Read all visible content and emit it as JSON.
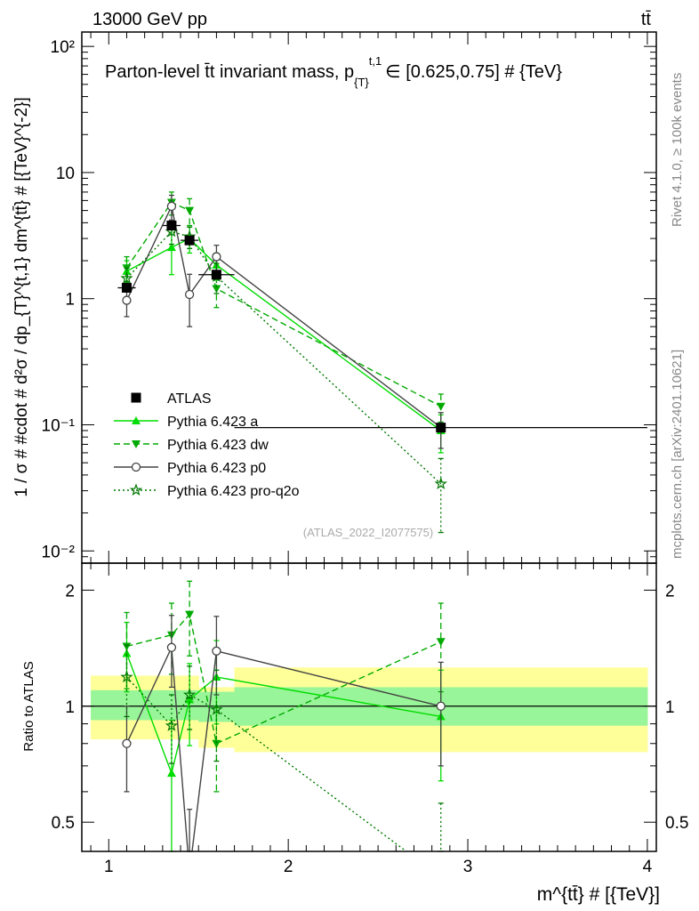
{
  "header": {
    "left_label": "13000 GeV pp",
    "right_label": "tt̄"
  },
  "side_labels": {
    "rivet": "Rivet 4.1.0, ≥ 100k events",
    "mcplots": "mcplots.cern.ch [arXiv:2401.10621]"
  },
  "chart_data": [
    {
      "type": "line",
      "panel": "main",
      "title": "Parton-level t̄t invariant mass, p_{T}^{t,1} ∈ [0.625,0.75] # {TeV}",
      "title_main": "Parton-level t̄t invariant mass, p",
      "title_sub": "{T}",
      "title_sup": "t,1",
      "title_tail": "∈ [0.625,0.75] # {TeV}",
      "ylabel": "1 / σ # #cdot # d²σ / dp_{T}^{t,1} dm^{tt̄} # [{TeV}^{-2}]",
      "ylabel_plain": "1 / σ # #cdot # d²σ / dp_{T}^{t,1} dm^{tt̄} # [{TeV}^{-2}]",
      "yscale": "log",
      "ylim": [
        0.008,
        130
      ],
      "xlim": [
        0.85,
        4.05
      ],
      "ytick_labels": [
        "10⁻²",
        "10⁻¹",
        "1",
        "10",
        "10²"
      ],
      "ytick_values": [
        0.01,
        0.1,
        1,
        10,
        100
      ],
      "watermark": "(ATLAS_2022_I2077575)",
      "legend_position": "middle-left",
      "series": [
        {
          "name": "ATLAS",
          "style": "data",
          "color": "#000000",
          "x": [
            1.1,
            1.35,
            1.45,
            1.6,
            2.85
          ],
          "y": [
            1.22,
            3.8,
            2.9,
            1.55,
            0.095
          ],
          "xerr_low": [
            0.05,
            0.05,
            0.05,
            0.1,
            1.15
          ],
          "xerr_high": [
            0.05,
            0.05,
            0.05,
            0.1,
            1.15
          ]
        },
        {
          "name": "Pythia 6.423 a",
          "style": "solid",
          "marker": "triangle-up",
          "color": "#00dd00",
          "x": [
            1.1,
            1.35,
            1.45,
            1.6,
            2.85
          ],
          "y": [
            1.65,
            2.55,
            3.0,
            1.85,
            0.09
          ],
          "err_low": [
            0.35,
            1.0,
            0.7,
            0.45,
            0.03
          ],
          "err_high": [
            0.35,
            1.0,
            0.7,
            0.45,
            0.03
          ]
        },
        {
          "name": "Pythia 6.423 dw",
          "style": "dashed",
          "marker": "triangle-down",
          "color": "#00aa00",
          "x": [
            1.1,
            1.35,
            1.45,
            1.6,
            2.85
          ],
          "y": [
            1.75,
            5.8,
            5.0,
            1.2,
            0.14
          ],
          "err_low": [
            0.4,
            1.2,
            1.2,
            0.35,
            0.035
          ],
          "err_high": [
            0.4,
            1.2,
            1.2,
            0.35,
            0.035
          ]
        },
        {
          "name": "Pythia 6.423 p0",
          "style": "solid",
          "marker": "circle-open",
          "color": "#444444",
          "x": [
            1.1,
            1.35,
            1.45,
            1.6,
            2.85
          ],
          "y": [
            0.97,
            5.4,
            1.08,
            2.15,
            0.095
          ],
          "err_low": [
            0.25,
            1.2,
            0.48,
            0.5,
            0.03
          ],
          "err_high": [
            0.25,
            1.2,
            0.48,
            0.5,
            0.03
          ]
        },
        {
          "name": "Pythia 6.423 pro-q2o",
          "style": "dotted",
          "marker": "star-open",
          "color": "#007700",
          "x": [
            1.1,
            1.35,
            1.45,
            1.6,
            2.85
          ],
          "y": [
            1.45,
            3.4,
            3.1,
            1.5,
            0.034
          ],
          "err_low": [
            0.3,
            0.7,
            0.6,
            0.4,
            0.02
          ],
          "err_high": [
            0.3,
            0.7,
            0.6,
            0.4,
            0.02
          ]
        }
      ]
    },
    {
      "type": "line",
      "panel": "ratio",
      "ylabel": "Ratio to ATLAS",
      "xlabel": "m^{tt̄} # [{TeV}]",
      "yscale": "log",
      "ylim": [
        0.42,
        2.35
      ],
      "xlim": [
        0.85,
        4.05
      ],
      "xtick_labels": [
        "1",
        "2",
        "3",
        "4"
      ],
      "xtick_values": [
        1,
        2,
        3,
        4
      ],
      "ytick_labels": [
        "0.5",
        "1",
        "2"
      ],
      "ytick_values": [
        0.5,
        1,
        2
      ],
      "bands": {
        "x_edges": [
          0.9,
          1.3,
          1.4,
          1.5,
          1.7,
          4.0
        ],
        "inner_low": [
          0.92,
          0.92,
          0.92,
          0.91,
          0.89
        ],
        "inner_high": [
          1.1,
          1.1,
          1.1,
          1.09,
          1.12
        ],
        "outer_low": [
          0.82,
          0.82,
          0.82,
          0.78,
          0.76
        ],
        "outer_high": [
          1.2,
          1.2,
          1.2,
          1.12,
          1.26
        ],
        "inner_color": "#99f599",
        "outer_color": "#ffff99"
      },
      "series": [
        {
          "name": "Pythia 6.423 a",
          "style": "solid",
          "marker": "triangle-up",
          "color": "#00dd00",
          "x": [
            1.1,
            1.35,
            1.45,
            1.6,
            2.85
          ],
          "y": [
            1.37,
            0.67,
            1.04,
            1.19,
            0.94
          ],
          "err_low": [
            0.28,
            0.25,
            0.25,
            0.29,
            0.3
          ],
          "err_high": [
            0.28,
            0.25,
            0.25,
            0.29,
            0.3
          ]
        },
        {
          "name": "Pythia 6.423 dw",
          "style": "dashed",
          "marker": "triangle-down",
          "color": "#00aa00",
          "x": [
            1.1,
            1.35,
            1.45,
            1.6,
            2.85
          ],
          "y": [
            1.43,
            1.53,
            1.73,
            0.8,
            1.47
          ],
          "err_low": [
            0.32,
            0.32,
            0.38,
            0.2,
            0.38
          ],
          "err_high": [
            0.32,
            0.32,
            0.38,
            0.2,
            0.38
          ]
        },
        {
          "name": "Pythia 6.423 p0",
          "style": "solid",
          "marker": "circle-open",
          "color": "#444444",
          "x": [
            1.1,
            1.35,
            1.45,
            1.6,
            2.85
          ],
          "y": [
            0.8,
            1.42,
            0.37,
            1.39,
            1.0
          ],
          "err_low": [
            0.2,
            0.3,
            0.17,
            0.32,
            0.3
          ],
          "err_high": [
            0.2,
            0.3,
            0.17,
            0.32,
            0.3
          ]
        },
        {
          "name": "Pythia 6.423 pro-q2o",
          "style": "dotted",
          "marker": "star-open",
          "color": "#007700",
          "x": [
            1.1,
            1.35,
            1.45,
            1.6,
            2.85
          ],
          "y": [
            1.19,
            0.89,
            1.07,
            0.98,
            0.36
          ],
          "err_low": [
            0.25,
            0.18,
            0.2,
            0.26,
            0.2
          ],
          "err_high": [
            0.25,
            0.18,
            0.2,
            0.26,
            0.2
          ]
        }
      ]
    }
  ]
}
